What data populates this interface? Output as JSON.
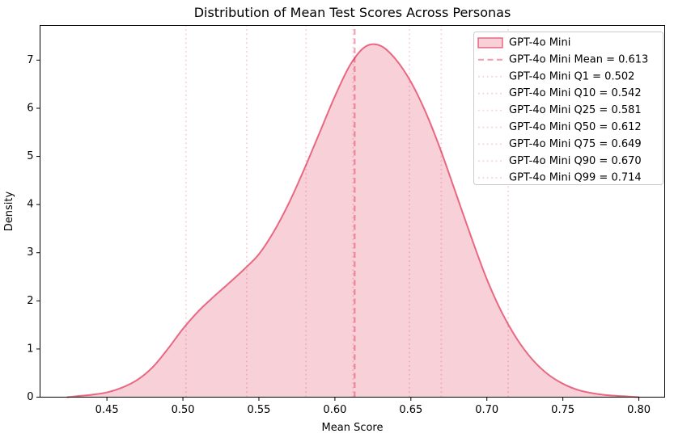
{
  "figure": {
    "background": "#ffffff"
  },
  "chart_data": {
    "type": "area",
    "kind": "kde-density",
    "title": "Distribution of Mean Test Scores Across Personas",
    "xlabel": "Mean Score",
    "ylabel": "Density",
    "xlim": [
      0.406,
      0.817
    ],
    "ylim": [
      0,
      7.72
    ],
    "x_ticks": [
      0.45,
      0.5,
      0.55,
      0.6,
      0.65,
      0.7,
      0.75,
      0.8
    ],
    "y_ticks": [
      0,
      1,
      2,
      3,
      4,
      5,
      6,
      7
    ],
    "grid": false,
    "legend_position": "upper right",
    "series": [
      {
        "name": "GPT-4o Mini",
        "x": [
          0.424,
          0.43,
          0.44,
          0.45,
          0.46,
          0.47,
          0.48,
          0.49,
          0.5,
          0.51,
          0.52,
          0.53,
          0.54,
          0.55,
          0.56,
          0.57,
          0.58,
          0.59,
          0.6,
          0.61,
          0.62,
          0.63,
          0.64,
          0.65,
          0.66,
          0.67,
          0.68,
          0.69,
          0.7,
          0.71,
          0.72,
          0.73,
          0.74,
          0.75,
          0.76,
          0.77,
          0.78,
          0.79,
          0.8
        ],
        "density": [
          0.0,
          0.02,
          0.05,
          0.1,
          0.2,
          0.36,
          0.62,
          1.0,
          1.42,
          1.78,
          2.08,
          2.36,
          2.65,
          2.97,
          3.45,
          4.05,
          4.75,
          5.5,
          6.25,
          6.9,
          7.28,
          7.3,
          7.02,
          6.55,
          5.9,
          5.1,
          4.2,
          3.3,
          2.45,
          1.75,
          1.2,
          0.78,
          0.48,
          0.28,
          0.15,
          0.08,
          0.04,
          0.02,
          0.0
        ]
      }
    ],
    "stats": {
      "mean": 0.613,
      "quantiles": [
        {
          "label": "Q1",
          "value": 0.502
        },
        {
          "label": "Q10",
          "value": 0.542
        },
        {
          "label": "Q25",
          "value": 0.581
        },
        {
          "label": "Q50",
          "value": 0.612
        },
        {
          "label": "Q75",
          "value": 0.649
        },
        {
          "label": "Q90",
          "value": 0.67
        },
        {
          "label": "Q99",
          "value": 0.714
        }
      ]
    },
    "legend": {
      "entries": [
        {
          "label": "GPT-4o Mini",
          "swatch": "patch"
        },
        {
          "label": "GPT-4o Mini Mean = 0.613",
          "swatch": "dashed"
        },
        {
          "label": "GPT-4o Mini Q1 = 0.502",
          "swatch": "dotted"
        },
        {
          "label": "GPT-4o Mini Q10 = 0.542",
          "swatch": "dotted"
        },
        {
          "label": "GPT-4o Mini Q25 = 0.581",
          "swatch": "dotted"
        },
        {
          "label": "GPT-4o Mini Q50 = 0.612",
          "swatch": "dotted"
        },
        {
          "label": "GPT-4o Mini Q75 = 0.649",
          "swatch": "dotted"
        },
        {
          "label": "GPT-4o Mini Q90 = 0.670",
          "swatch": "dotted"
        },
        {
          "label": "GPT-4o Mini Q99 = 0.714",
          "swatch": "dotted"
        }
      ]
    },
    "colors": {
      "base": "#DC143C",
      "fill_alpha": 0.2,
      "line_alpha": 0.6,
      "mean_alpha": 0.4,
      "quantile_alpha": 0.2,
      "legend_border": "#CCCCCC",
      "legend_background": "#FFFFFF",
      "axis": "#000000",
      "text": "#000000"
    }
  }
}
